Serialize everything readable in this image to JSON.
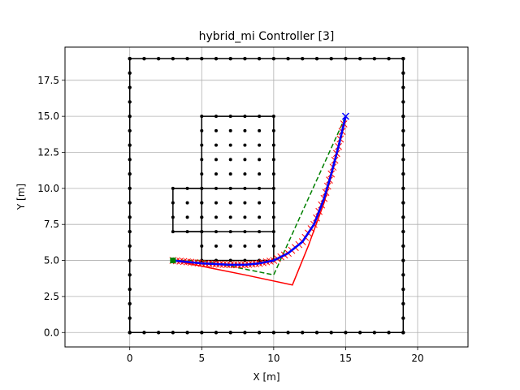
{
  "chart_data": {
    "type": "line",
    "title": "hybrid_mi Controller [3]",
    "xlabel": "X [m]",
    "ylabel": "Y [m]",
    "xlim": [
      -4.5,
      23.5
    ],
    "ylim": [
      -1,
      19.8
    ],
    "grid": true,
    "xticks": [
      0,
      5,
      10,
      15,
      20
    ],
    "yticks": [
      0.0,
      2.5,
      5.0,
      7.5,
      10.0,
      12.5,
      15.0,
      17.5
    ],
    "xtick_labels": [
      "0",
      "5",
      "10",
      "15",
      "20"
    ],
    "ytick_labels": [
      "0.0",
      "2.5",
      "5.0",
      "7.5",
      "10.0",
      "12.5",
      "15.0",
      "17.5"
    ],
    "boundary": {
      "color": "#000000",
      "lines": [
        [
          [
            0,
            0
          ],
          [
            19,
            0
          ],
          [
            19,
            19
          ],
          [
            0,
            19
          ],
          [
            0,
            0
          ]
        ]
      ],
      "points_on_edges": {
        "from": 0,
        "to": 19,
        "step": 1
      }
    },
    "obstacles": {
      "color": "#000000",
      "rectangles": [
        {
          "x0": 5,
          "y0": 5,
          "x1": 10,
          "y1": 15
        },
        {
          "x0": 3,
          "y0": 7,
          "x1": 5,
          "y1": 10
        }
      ],
      "interior_lines": [
        [
          [
            3,
            10
          ],
          [
            10,
            10
          ]
        ],
        [
          [
            3,
            7
          ],
          [
            10,
            7
          ]
        ]
      ],
      "grid_points_step": 1
    },
    "series": [
      {
        "role": "reference_path",
        "color": "#008000",
        "style": "dashed",
        "x": [
          3,
          5,
          10,
          15
        ],
        "y": [
          5,
          5,
          4,
          15
        ]
      },
      {
        "role": "predicted_horizons",
        "color": "#ff0000",
        "style": "solid",
        "x": [
          3,
          5,
          8,
          11.3,
          12.4,
          13.5,
          14.3,
          15
        ],
        "y": [
          5,
          4.6,
          4.0,
          3.3,
          6.0,
          9.0,
          12.0,
          14.8
        ]
      },
      {
        "role": "executed_trajectory",
        "color": "#0000ff",
        "style": "solid",
        "x": [
          3,
          4,
          5,
          6,
          7,
          8,
          9,
          10,
          11,
          12,
          12.8,
          13.5,
          14.0,
          14.5,
          15
        ],
        "y": [
          5,
          4.9,
          4.8,
          4.75,
          4.7,
          4.7,
          4.8,
          5.0,
          5.5,
          6.3,
          7.5,
          9.3,
          11.0,
          12.9,
          15
        ]
      }
    ],
    "markers": [
      {
        "role": "start",
        "x": 3,
        "y": 5,
        "symbol": "square",
        "color": "#008000"
      },
      {
        "role": "goal",
        "x": 15,
        "y": 15,
        "symbol": "x",
        "color": "#0000ff"
      }
    ]
  }
}
